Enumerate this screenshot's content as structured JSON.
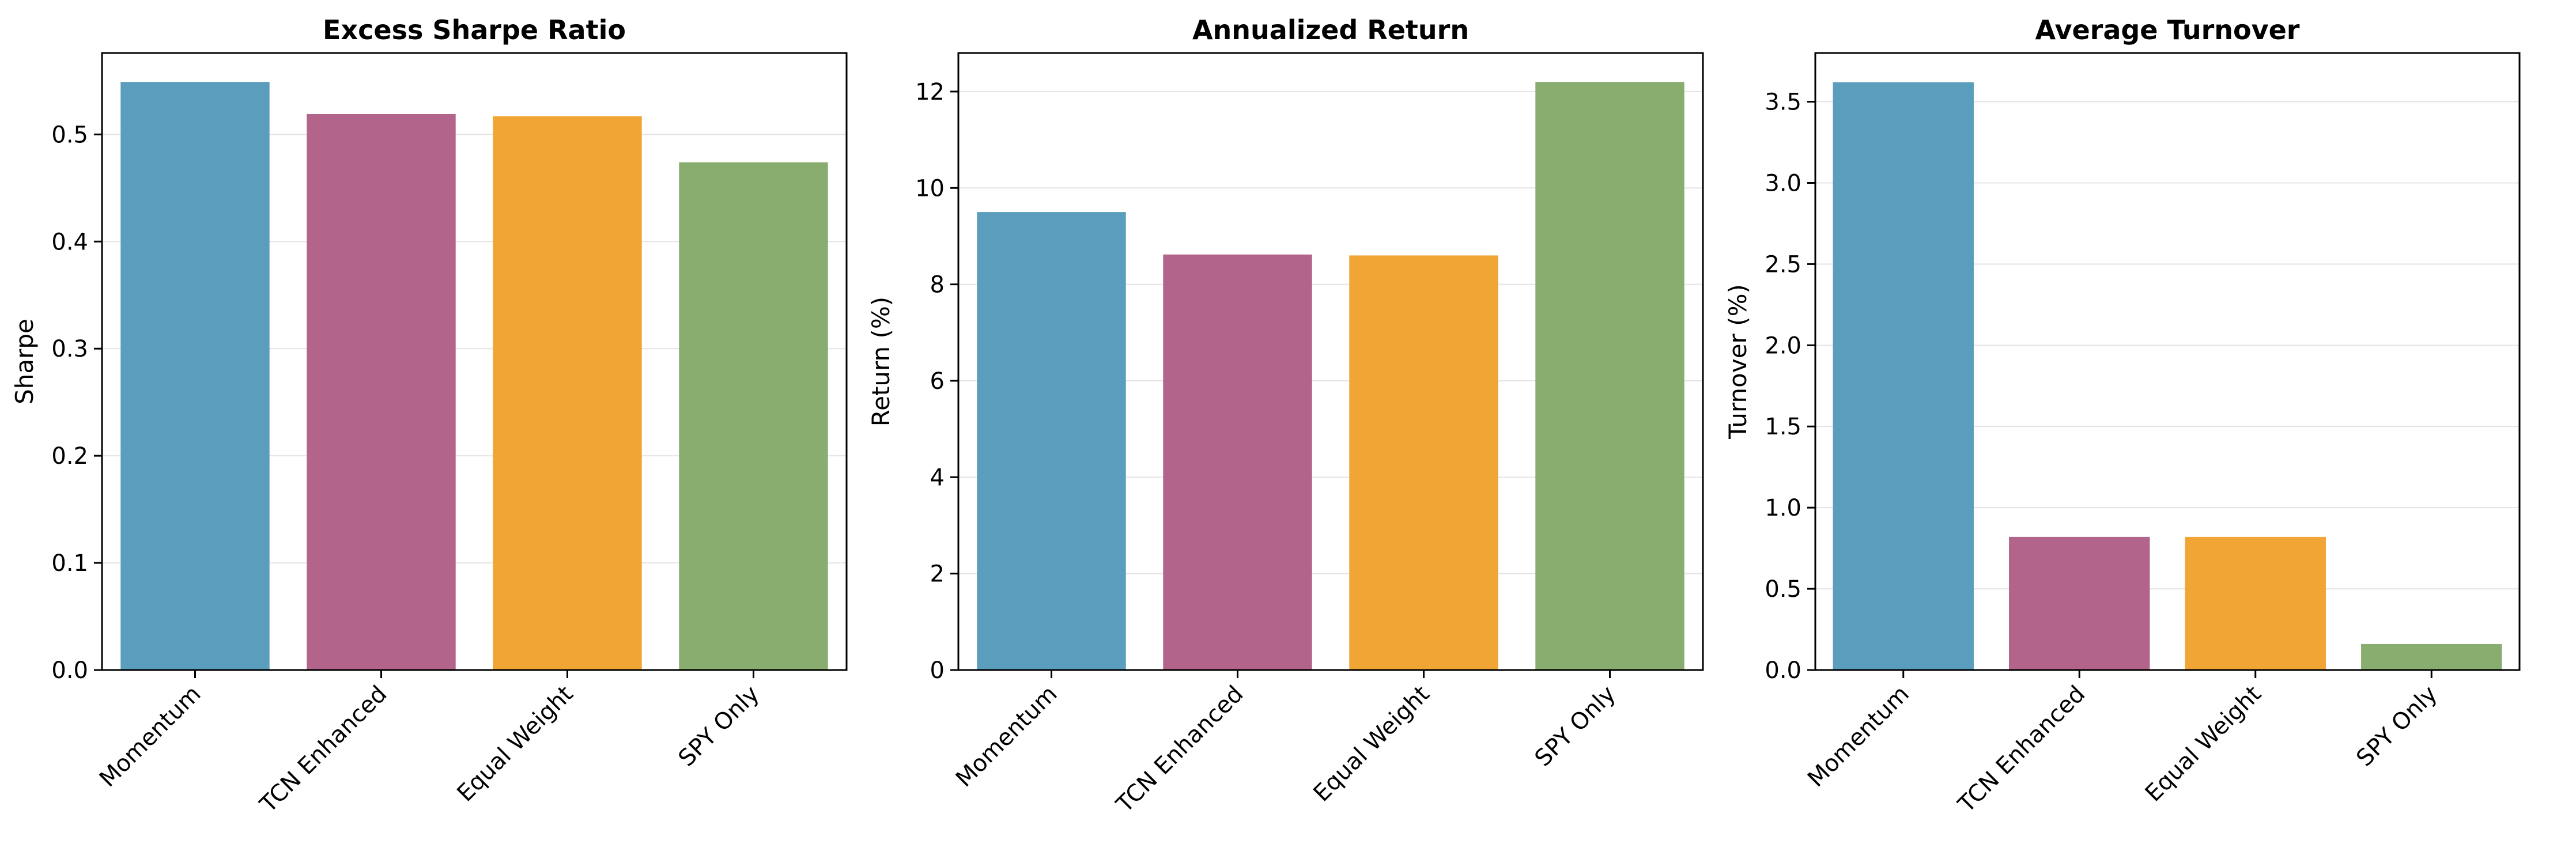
{
  "colors": {
    "bars": [
      "#5a9dbd",
      "#b3648a",
      "#f0a535",
      "#89ad6f"
    ],
    "grid": "#e4e4e4",
    "axis": "#000000",
    "background": "#ffffff"
  },
  "chart_data": [
    {
      "type": "bar",
      "title": "Excess Sharpe Ratio",
      "xlabel": "",
      "ylabel": "Sharpe",
      "categories": [
        "Momentum",
        "TCN Enhanced",
        "Equal Weight",
        "SPY Only"
      ],
      "values": [
        0.549,
        0.519,
        0.517,
        0.474
      ],
      "ylim": [
        0,
        0.576
      ],
      "yticks": [
        0.0,
        0.1,
        0.2,
        0.3,
        0.4,
        0.5
      ],
      "ytick_labels": [
        "0.0",
        "0.1",
        "0.2",
        "0.3",
        "0.4",
        "0.5"
      ],
      "grid": true
    },
    {
      "type": "bar",
      "title": "Annualized Return",
      "xlabel": "",
      "ylabel": "Return (%)",
      "categories": [
        "Momentum",
        "TCN Enhanced",
        "Equal Weight",
        "SPY Only"
      ],
      "values": [
        9.5,
        8.62,
        8.6,
        12.2
      ],
      "ylim": [
        0,
        12.8
      ],
      "yticks": [
        0,
        2,
        4,
        6,
        8,
        10,
        12
      ],
      "ytick_labels": [
        "0",
        "2",
        "4",
        "6",
        "8",
        "10",
        "12"
      ],
      "grid": true
    },
    {
      "type": "bar",
      "title": "Average Turnover",
      "xlabel": "",
      "ylabel": "Turnover (%)",
      "categories": [
        "Momentum",
        "TCN Enhanced",
        "Equal Weight",
        "SPY Only"
      ],
      "values": [
        3.62,
        0.82,
        0.82,
        0.16
      ],
      "ylim": [
        0,
        3.8
      ],
      "yticks": [
        0.0,
        0.5,
        1.0,
        1.5,
        2.0,
        2.5,
        3.0,
        3.5
      ],
      "ytick_labels": [
        "0.0",
        "0.5",
        "1.0",
        "1.5",
        "2.0",
        "2.5",
        "3.0",
        "3.5"
      ],
      "grid": true
    }
  ]
}
